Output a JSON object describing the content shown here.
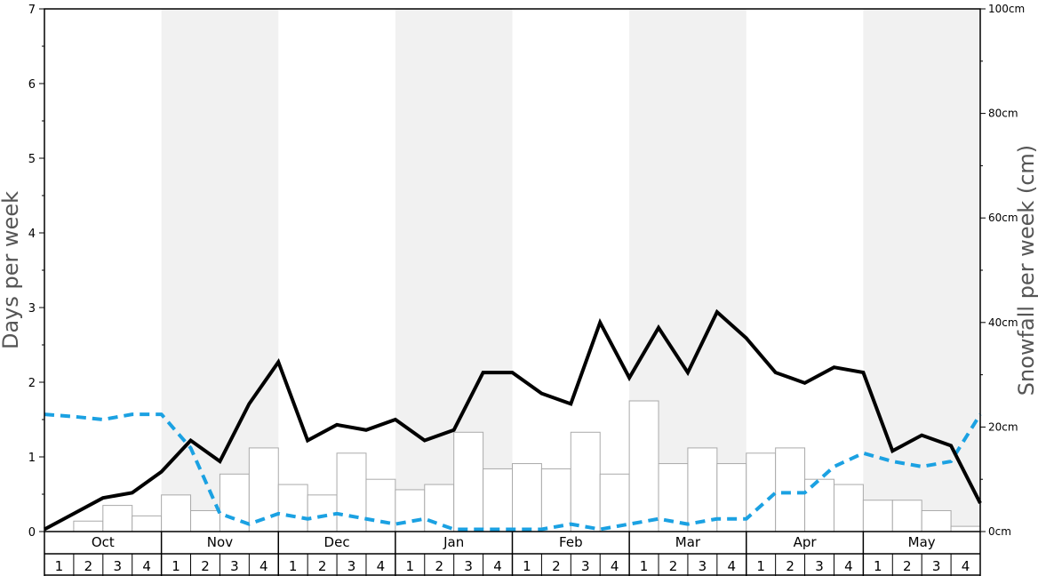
{
  "chart_data": {
    "type": "bar+line",
    "months": [
      "Oct",
      "Nov",
      "Dec",
      "Jan",
      "Feb",
      "Mar",
      "Apr",
      "May"
    ],
    "weeks": [
      "1",
      "2",
      "3",
      "4"
    ],
    "ylabel_left": "Days per week",
    "ylabel_right": "Snowfall per week (cm)",
    "ylim_left": [
      0,
      7
    ],
    "ylim_right": [
      0,
      100
    ],
    "left_ticks": [
      "0",
      "1",
      "2",
      "3",
      "4",
      "5",
      "6",
      "7"
    ],
    "right_ticks": [
      "0cm",
      "20cm",
      "40cm",
      "60cm",
      "80cm",
      "100cm"
    ],
    "colors": {
      "bars_fill": "#ffffff",
      "bars_stroke": "#aaaaaa",
      "snow_days_line": "#000000",
      "dashed_line": "#1ba1e2",
      "band_shade": "#f1f1f1"
    },
    "series": [
      {
        "kind": "bar",
        "axis": "right",
        "values": [
          0,
          2,
          5,
          3,
          7,
          4,
          11,
          16,
          9,
          7,
          15,
          10,
          8,
          9,
          19,
          12,
          13,
          12,
          19,
          11,
          25,
          13,
          16,
          13,
          15,
          16,
          10,
          9,
          6,
          6,
          4,
          1
        ]
      },
      {
        "kind": "line",
        "axis": "left",
        "values": [
          0.03,
          0.24,
          0.45,
          0.52,
          0.8,
          1.22,
          0.94,
          1.71,
          2.27,
          1.22,
          1.43,
          1.36,
          1.5,
          1.22,
          1.36,
          2.13,
          2.13,
          1.85,
          1.71,
          2.8,
          2.06,
          2.73,
          2.13,
          2.94,
          2.59,
          2.13,
          1.99,
          2.2,
          2.13,
          1.08,
          1.29,
          1.15,
          0.38
        ]
      },
      {
        "kind": "dashed-line",
        "axis": "left",
        "values": [
          1.57,
          1.54,
          1.5,
          1.57,
          1.57,
          1.12,
          0.24,
          0.1,
          0.24,
          0.17,
          0.24,
          0.17,
          0.1,
          0.17,
          0.03,
          0.03,
          0.03,
          0.03,
          0.1,
          0.03,
          0.1,
          0.17,
          0.1,
          0.17,
          0.17,
          0.52,
          0.52,
          0.87,
          1.05,
          0.94,
          0.87,
          0.94,
          1.57
        ]
      }
    ]
  }
}
